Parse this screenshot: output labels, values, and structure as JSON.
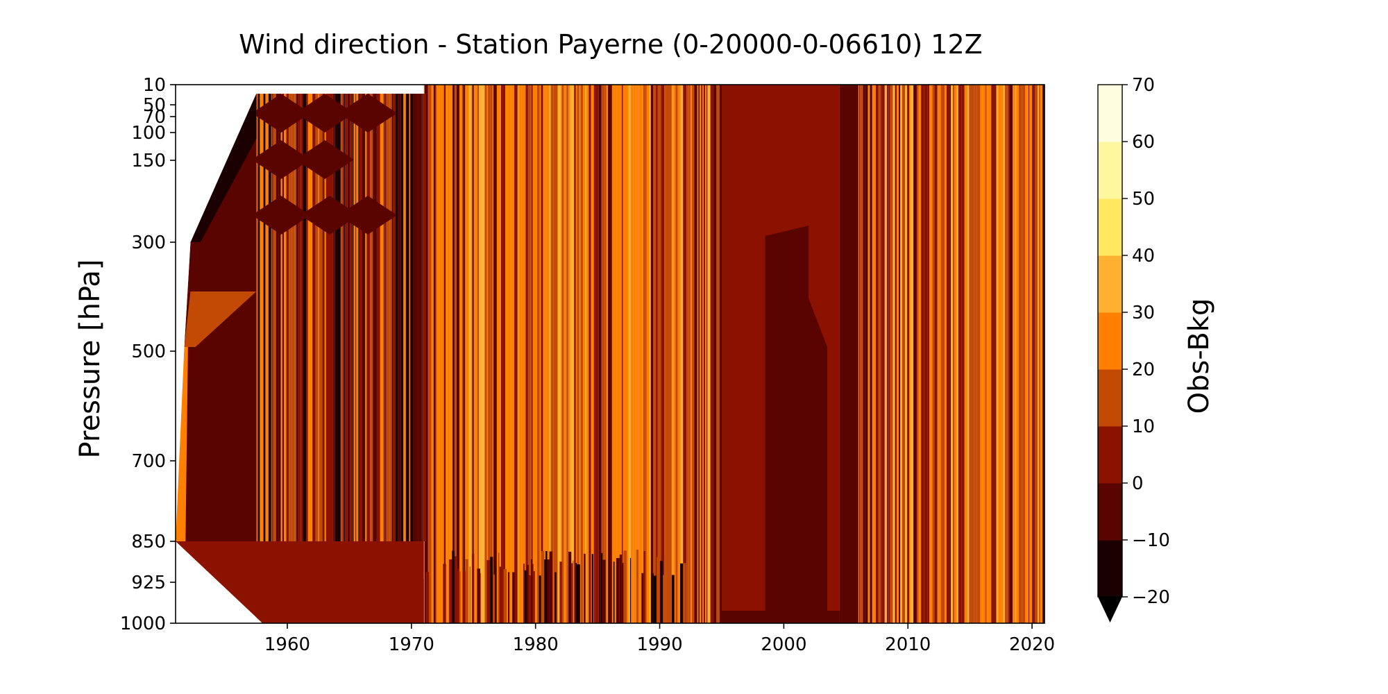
{
  "chart_data": {
    "type": "heatmap",
    "subtype": "filled-contour",
    "title": "Wind direction - Station Payerne (0-20000-0-06610) 12Z",
    "xlabel": "",
    "ylabel": "Pressure [hPa]",
    "xlim": [
      1951,
      2021
    ],
    "x_ticks": [
      1960,
      1970,
      1980,
      1990,
      2000,
      2010,
      2020
    ],
    "y_ticks": [
      10,
      50,
      70,
      100,
      150,
      300,
      500,
      700,
      850,
      925,
      1000
    ],
    "ylim": [
      1000,
      10
    ],
    "y_scale": "pressure levels (not linear)",
    "colorbar": {
      "label": "Obs-Bkg",
      "ticks": [
        -20,
        -10,
        0,
        10,
        20,
        30,
        40,
        50,
        60,
        70
      ],
      "extend": "min",
      "colormap": "afmhot",
      "colors": [
        "#000000",
        "#1a0000",
        "#5a0400",
        "#8c1200",
        "#c24a05",
        "#ff7f00",
        "#ffb030",
        "#ffe860",
        "#fff6a0",
        "#fffde0"
      ]
    },
    "regimes": [
      {
        "period": [
          1951,
          1957.5
        ],
        "pattern": "sparse early data, mostly dark (-10 to 10), white where no data"
      },
      {
        "period": [
          1957.5,
          1971
        ],
        "pattern": "dense vertical stripes, mixed dark and orange, diamond contour artefacts 50-300 hPa"
      },
      {
        "period": [
          1971,
          1995
        ],
        "pattern": "dense vertical stripes, dominantly orange (10 to 30)"
      },
      {
        "period": [
          1995,
          2004.5
        ],
        "pattern": "smooth fields, dark red (0 to 10) with a darker (-10 to 0) lower block"
      },
      {
        "period": [
          2004.5,
          2021
        ],
        "pattern": "dense vertical stripes, orange and dark red"
      }
    ]
  }
}
